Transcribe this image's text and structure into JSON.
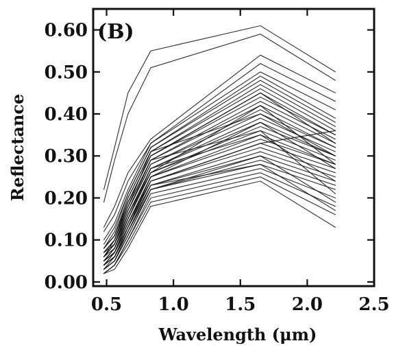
{
  "chart_data": {
    "type": "line",
    "panel_label": "(B)",
    "xlabel": "Wavelength (μm)",
    "ylabel": "Reflectance",
    "xlim": [
      0.4,
      2.5
    ],
    "ylim": [
      -0.01,
      0.65
    ],
    "xticks": [
      0.5,
      1.0,
      1.5,
      2.0,
      2.5
    ],
    "xtick_labels": [
      "0.5",
      "1.0",
      "1.5",
      "2.0",
      "2.5"
    ],
    "yticks": [
      0.0,
      0.1,
      0.2,
      0.3,
      0.4,
      0.5,
      0.6
    ],
    "ytick_labels": [
      "0.00",
      "0.10",
      "0.20",
      "0.30",
      "0.40",
      "0.50",
      "0.60"
    ],
    "grid": false,
    "legend": "none",
    "x": [
      0.48,
      0.56,
      0.66,
      0.83,
      1.65,
      2.21
    ],
    "series": [
      {
        "values": [
          0.22,
          0.32,
          0.45,
          0.55,
          0.61,
          0.5
        ]
      },
      {
        "values": [
          0.19,
          0.29,
          0.4,
          0.51,
          0.59,
          0.48
        ]
      },
      {
        "values": [
          0.13,
          0.18,
          0.26,
          0.34,
          0.54,
          0.45
        ]
      },
      {
        "values": [
          0.12,
          0.16,
          0.24,
          0.33,
          0.52,
          0.43
        ]
      },
      {
        "values": [
          0.1,
          0.14,
          0.22,
          0.33,
          0.5,
          0.41
        ]
      },
      {
        "values": [
          0.09,
          0.13,
          0.21,
          0.32,
          0.49,
          0.39
        ]
      },
      {
        "values": [
          0.08,
          0.12,
          0.21,
          0.32,
          0.48,
          0.38
        ]
      },
      {
        "values": [
          0.08,
          0.11,
          0.2,
          0.31,
          0.47,
          0.37
        ]
      },
      {
        "values": [
          0.08,
          0.11,
          0.2,
          0.31,
          0.46,
          0.36
        ]
      },
      {
        "values": [
          0.07,
          0.1,
          0.19,
          0.3,
          0.45,
          0.35
        ]
      },
      {
        "values": [
          0.07,
          0.1,
          0.19,
          0.3,
          0.44,
          0.35
        ]
      },
      {
        "values": [
          0.07,
          0.1,
          0.18,
          0.29,
          0.43,
          0.34
        ]
      },
      {
        "values": [
          0.06,
          0.09,
          0.18,
          0.29,
          0.42,
          0.33
        ]
      },
      {
        "values": [
          0.06,
          0.09,
          0.17,
          0.28,
          0.41,
          0.32
        ]
      },
      {
        "values": [
          0.06,
          0.09,
          0.17,
          0.28,
          0.4,
          0.32
        ]
      },
      {
        "values": [
          0.06,
          0.08,
          0.16,
          0.27,
          0.39,
          0.31
        ]
      },
      {
        "values": [
          0.05,
          0.08,
          0.16,
          0.27,
          0.38,
          0.3
        ]
      },
      {
        "values": [
          0.05,
          0.08,
          0.15,
          0.26,
          0.37,
          0.3
        ]
      },
      {
        "values": [
          0.05,
          0.07,
          0.15,
          0.26,
          0.36,
          0.29
        ]
      },
      {
        "values": [
          0.05,
          0.07,
          0.14,
          0.25,
          0.35,
          0.28
        ]
      },
      {
        "values": [
          0.04,
          0.07,
          0.14,
          0.25,
          0.34,
          0.28
        ]
      },
      {
        "values": [
          0.04,
          0.06,
          0.13,
          0.24,
          0.33,
          0.27
        ]
      },
      {
        "values": [
          0.04,
          0.06,
          0.13,
          0.24,
          0.32,
          0.26
        ]
      },
      {
        "values": [
          0.04,
          0.06,
          0.12,
          0.23,
          0.31,
          0.25
        ]
      },
      {
        "values": [
          0.03,
          0.05,
          0.12,
          0.23,
          0.3,
          0.24
        ]
      },
      {
        "values": [
          0.03,
          0.05,
          0.11,
          0.22,
          0.29,
          0.23
        ]
      },
      {
        "values": [
          0.03,
          0.05,
          0.11,
          0.22,
          0.28,
          0.22
        ]
      },
      {
        "values": [
          0.02,
          0.04,
          0.1,
          0.21,
          0.27,
          0.2
        ]
      },
      {
        "values": [
          0.02,
          0.04,
          0.1,
          0.2,
          0.26,
          0.18
        ]
      },
      {
        "values": [
          0.02,
          0.04,
          0.09,
          0.19,
          0.25,
          0.16
        ]
      },
      {
        "values": [
          0.02,
          0.03,
          0.08,
          0.18,
          0.24,
          0.13
        ]
      },
      {
        "values": [
          0.07,
          0.09,
          0.16,
          0.26,
          0.42,
          0.28
        ]
      },
      {
        "values": [
          0.06,
          0.09,
          0.17,
          0.29,
          0.36,
          0.21
        ]
      },
      {
        "values": [
          0.05,
          0.07,
          0.14,
          0.24,
          0.33,
          0.36
        ]
      },
      {
        "values": [
          0.04,
          0.06,
          0.12,
          0.22,
          0.3,
          0.19
        ]
      },
      {
        "values": [
          0.08,
          0.11,
          0.19,
          0.3,
          0.45,
          0.33
        ]
      },
      {
        "values": [
          0.03,
          0.06,
          0.13,
          0.25,
          0.38,
          0.27
        ]
      },
      {
        "values": [
          0.05,
          0.08,
          0.15,
          0.27,
          0.35,
          0.24
        ]
      },
      {
        "values": [
          0.06,
          0.1,
          0.18,
          0.31,
          0.4,
          0.3
        ]
      },
      {
        "values": [
          0.04,
          0.07,
          0.13,
          0.23,
          0.28,
          0.17
        ]
      }
    ]
  }
}
